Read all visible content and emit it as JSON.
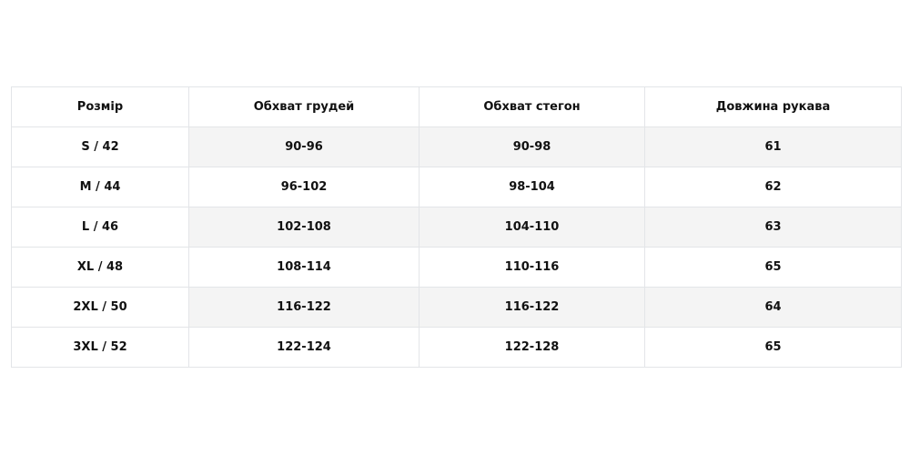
{
  "table": {
    "headers": [
      "Розмір",
      "Обхват грудей",
      "Обхват стегон",
      "Довжина рукава"
    ],
    "rows": [
      [
        "S / 42",
        "90-96",
        "90-98",
        "61"
      ],
      [
        "M / 44",
        "96-102",
        "98-104",
        "62"
      ],
      [
        "L / 46",
        "102-108",
        "104-110",
        "63"
      ],
      [
        "XL / 48",
        "108-114",
        "110-116",
        "65"
      ],
      [
        "2XL / 50",
        "116-122",
        "116-122",
        "64"
      ],
      [
        "3XL / 52",
        "122-124",
        "122-128",
        "65"
      ]
    ]
  }
}
